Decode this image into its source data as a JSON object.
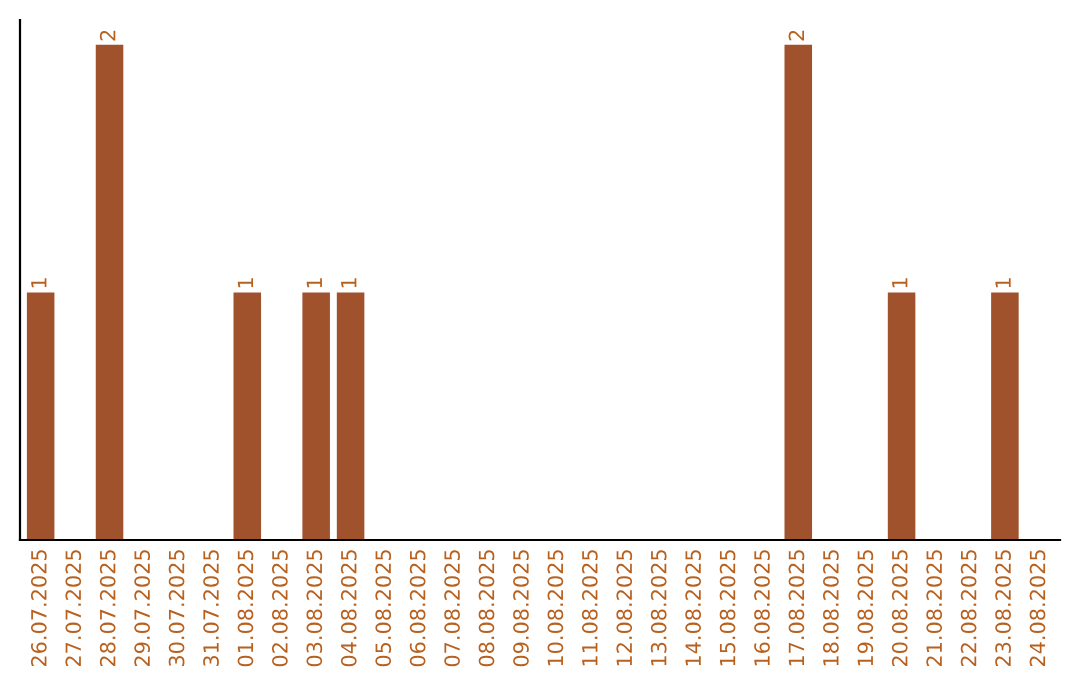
{
  "chart_data": {
    "type": "bar",
    "categories": [
      "26.07.2025",
      "27.07.2025",
      "28.07.2025",
      "29.07.2025",
      "30.07.2025",
      "31.07.2025",
      "01.08.2025",
      "02.08.2025",
      "03.08.2025",
      "04.08.2025",
      "05.08.2025",
      "06.08.2025",
      "07.08.2025",
      "08.08.2025",
      "09.08.2025",
      "10.08.2025",
      "11.08.2025",
      "12.08.2025",
      "13.08.2025",
      "14.08.2025",
      "15.08.2025",
      "16.08.2025",
      "17.08.2025",
      "18.08.2025",
      "19.08.2025",
      "20.08.2025",
      "21.08.2025",
      "22.08.2025",
      "23.08.2025",
      "24.08.2025"
    ],
    "values": [
      1,
      0,
      2,
      0,
      0,
      0,
      1,
      0,
      1,
      1,
      0,
      0,
      0,
      0,
      0,
      0,
      0,
      0,
      0,
      0,
      0,
      0,
      2,
      0,
      0,
      1,
      0,
      0,
      1,
      0
    ],
    "value_labels": [
      "1",
      null,
      "2",
      null,
      null,
      null,
      "1",
      null,
      "1",
      "1",
      null,
      null,
      null,
      null,
      null,
      null,
      null,
      null,
      null,
      null,
      null,
      null,
      "2",
      null,
      null,
      "1",
      null,
      null,
      "1",
      null
    ],
    "color": "#a0522d",
    "ylim": [
      0,
      2.1
    ],
    "tick_labels": "x",
    "grid": false,
    "legend": false
  }
}
